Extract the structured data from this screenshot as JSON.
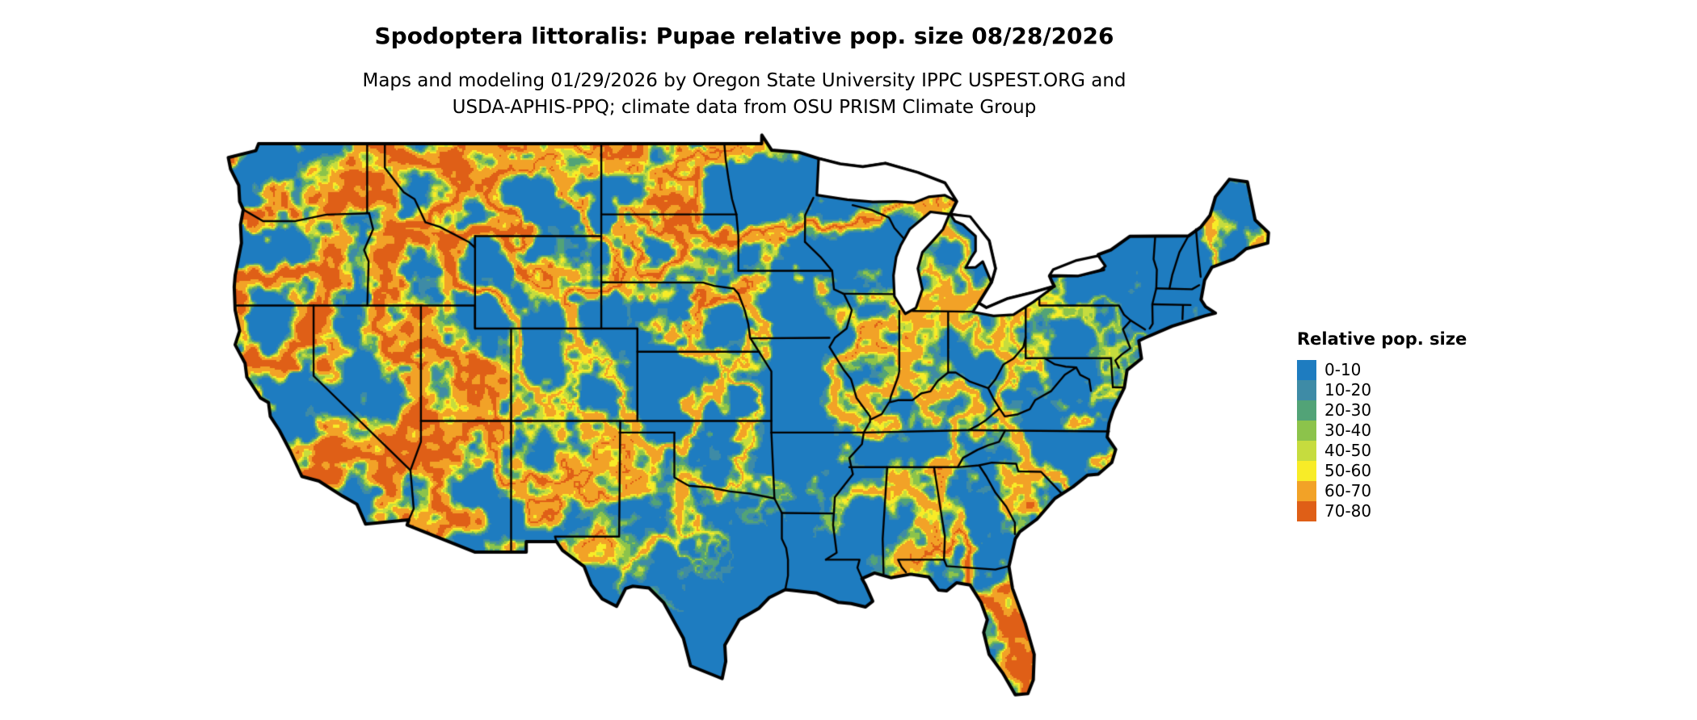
{
  "header": {
    "title": "Spodoptera littoralis: Pupae relative pop. size 08/28/2026",
    "subtitle_line1": "Maps and modeling 01/29/2026 by Oregon State University IPPC USPEST.ORG and",
    "subtitle_line2": "USDA-APHIS-PPQ; climate data from OSU PRISM Climate Group"
  },
  "map": {
    "region": "Continental United States",
    "border_color": "#000000",
    "water_color": "#ffffff"
  },
  "legend": {
    "title": "Relative pop. size",
    "classes": [
      {
        "label": "0-10",
        "color": "#1e7cc0"
      },
      {
        "label": "10-20",
        "color": "#3e8ba6"
      },
      {
        "label": "20-30",
        "color": "#52a377"
      },
      {
        "label": "30-40",
        "color": "#8cc34b"
      },
      {
        "label": "40-50",
        "color": "#c6dc3e"
      },
      {
        "label": "50-60",
        "color": "#f8ec27"
      },
      {
        "label": "60-70",
        "color": "#f2a227"
      },
      {
        "label": "70-80",
        "color": "#df5f17"
      }
    ]
  }
}
